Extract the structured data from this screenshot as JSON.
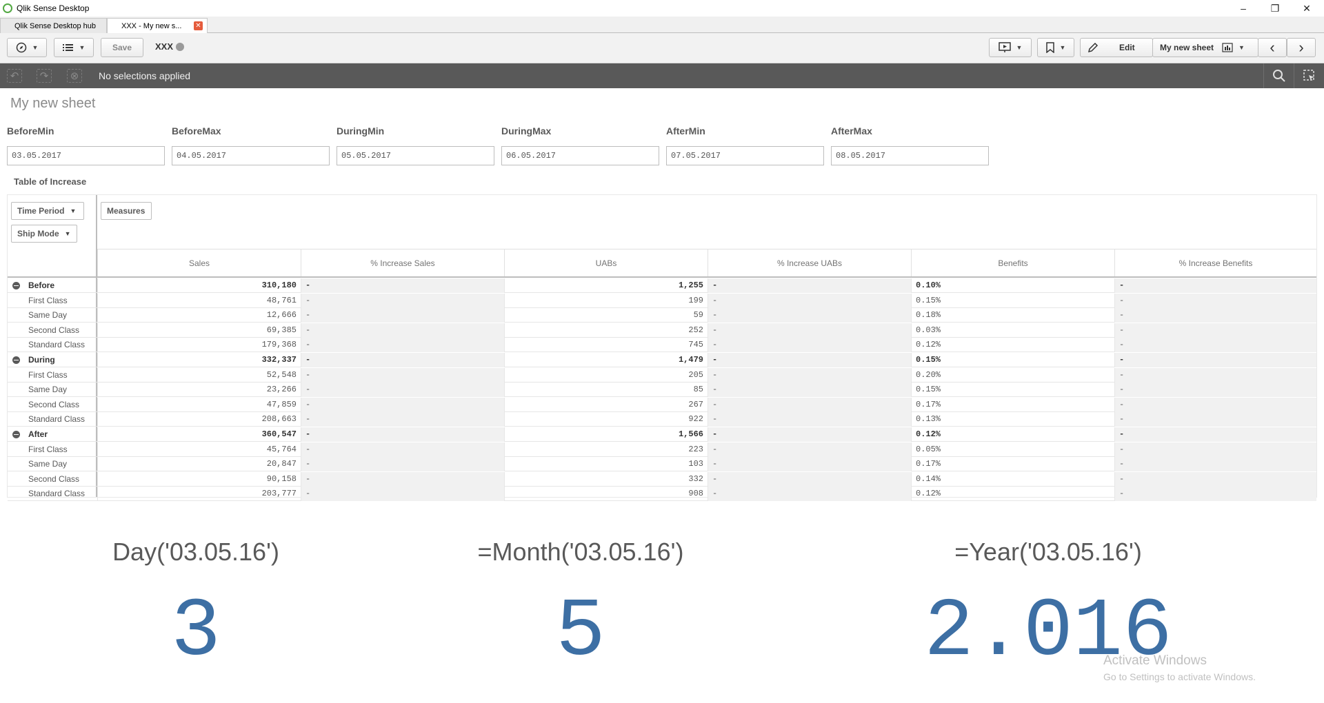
{
  "window": {
    "title": "Qlik Sense Desktop",
    "controls": [
      "–",
      "❐",
      "✕"
    ]
  },
  "tabs": [
    {
      "label": "Qlik Sense Desktop hub"
    },
    {
      "label": "XXX - My new s...",
      "close": "✕"
    }
  ],
  "toolbar": {
    "save_label": "Save",
    "app_name": "XXX",
    "edit_label": "Edit",
    "sheet_label": "My new sheet",
    "prev": "‹",
    "next": "›"
  },
  "selections": {
    "text": "No selections applied"
  },
  "sheet": {
    "title": "My new sheet"
  },
  "filters": [
    {
      "label": "BeforeMin",
      "value": "03.05.2017"
    },
    {
      "label": "BeforeMax",
      "value": "04.05.2017"
    },
    {
      "label": "DuringMin",
      "value": "05.05.2017"
    },
    {
      "label": "DuringMax",
      "value": "06.05.2017"
    },
    {
      "label": "AfterMin",
      "value": "07.05.2017"
    },
    {
      "label": "AfterMax",
      "value": "08.05.2017"
    }
  ],
  "table": {
    "title": "Table of Increase",
    "dimensions": [
      "Time Period",
      "Ship Mode"
    ],
    "measures_label": "Measures",
    "columns": [
      "Sales",
      "% Increase Sales",
      "UABs",
      "% Increase UABs",
      "Benefits",
      "% Increase Benefits"
    ],
    "rows": [
      {
        "label": "Before",
        "level": 0,
        "values": [
          "310,180",
          "-",
          "1,255",
          "-",
          "0.10%",
          "-"
        ]
      },
      {
        "label": "First Class",
        "level": 1,
        "values": [
          "48,761",
          "-",
          "199",
          "-",
          "0.15%",
          "-"
        ]
      },
      {
        "label": "Same Day",
        "level": 1,
        "values": [
          "12,666",
          "-",
          "59",
          "-",
          "0.18%",
          "-"
        ]
      },
      {
        "label": "Second Class",
        "level": 1,
        "values": [
          "69,385",
          "-",
          "252",
          "-",
          "0.03%",
          "-"
        ]
      },
      {
        "label": "Standard Class",
        "level": 1,
        "values": [
          "179,368",
          "-",
          "745",
          "-",
          "0.12%",
          "-"
        ]
      },
      {
        "label": "During",
        "level": 0,
        "values": [
          "332,337",
          "-",
          "1,479",
          "-",
          "0.15%",
          "-"
        ]
      },
      {
        "label": "First Class",
        "level": 1,
        "values": [
          "52,548",
          "-",
          "205",
          "-",
          "0.20%",
          "-"
        ]
      },
      {
        "label": "Same Day",
        "level": 1,
        "values": [
          "23,266",
          "-",
          "85",
          "-",
          "0.15%",
          "-"
        ]
      },
      {
        "label": "Second Class",
        "level": 1,
        "values": [
          "47,859",
          "-",
          "267",
          "-",
          "0.17%",
          "-"
        ]
      },
      {
        "label": "Standard Class",
        "level": 1,
        "values": [
          "208,663",
          "-",
          "922",
          "-",
          "0.13%",
          "-"
        ]
      },
      {
        "label": "After",
        "level": 0,
        "values": [
          "360,547",
          "-",
          "1,566",
          "-",
          "0.12%",
          "-"
        ]
      },
      {
        "label": "First Class",
        "level": 1,
        "values": [
          "45,764",
          "-",
          "223",
          "-",
          "0.05%",
          "-"
        ]
      },
      {
        "label": "Same Day",
        "level": 1,
        "values": [
          "20,847",
          "-",
          "103",
          "-",
          "0.17%",
          "-"
        ]
      },
      {
        "label": "Second Class",
        "level": 1,
        "values": [
          "90,158",
          "-",
          "332",
          "-",
          "0.14%",
          "-"
        ]
      },
      {
        "label": "Standard Class",
        "level": 1,
        "values": [
          "203,777",
          "-",
          "908",
          "-",
          "0.12%",
          "-"
        ]
      }
    ]
  },
  "kpis": [
    {
      "title": "Day('03.05.16')",
      "value": "3"
    },
    {
      "title": "=Month('03.05.16')",
      "value": "5"
    },
    {
      "title": "=Year('03.05.16')",
      "value": "2.016"
    }
  ],
  "watermark": {
    "line1": "Activate Windows",
    "line2": "Go to Settings to activate Windows."
  },
  "colors": {
    "kpi_value": "#3d6fa4",
    "selection_bar": "#595959",
    "tab_close": "#e55b3c"
  }
}
